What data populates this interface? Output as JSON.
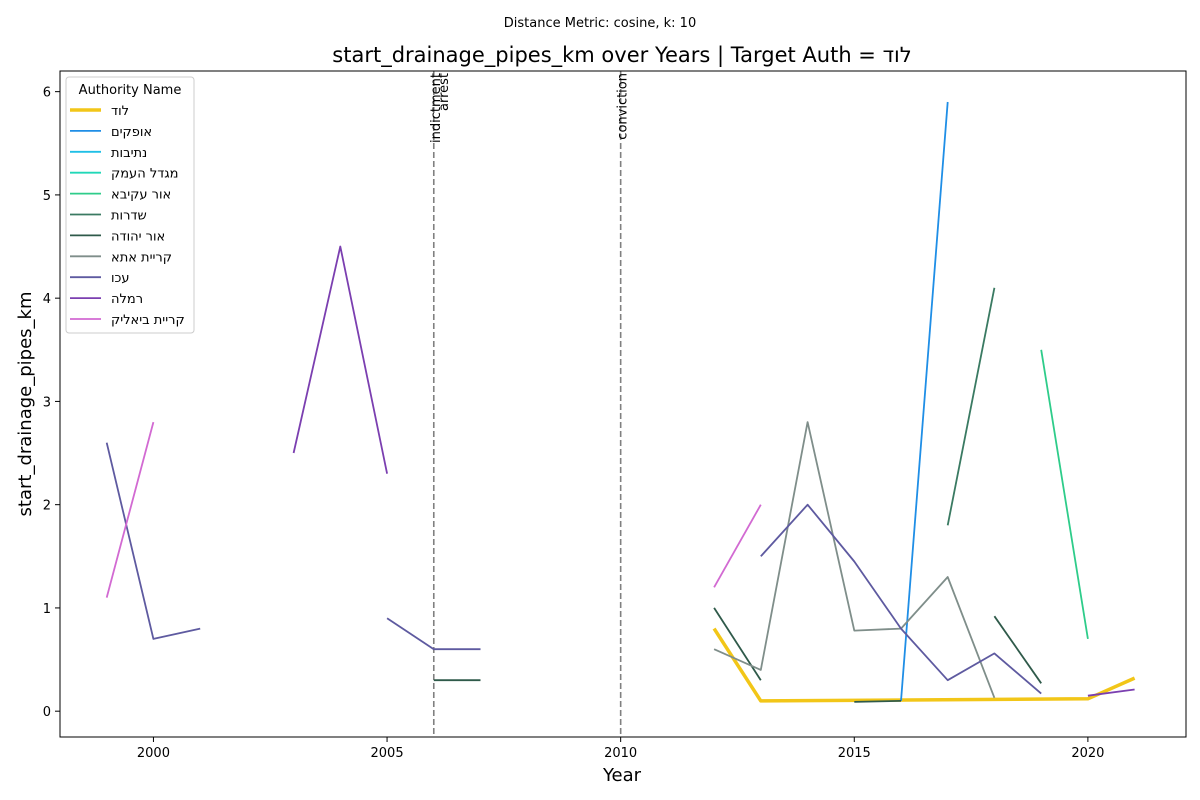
{
  "chart_data": {
    "type": "line",
    "suptitle": "Distance Metric: cosine, k: 10",
    "title": "start_drainage_pipes_km over Years | Target Auth = לוד",
    "xlabel": "Year",
    "ylabel": "start_drainage_pipes_km",
    "xlim": [
      1998.0,
      2022.1
    ],
    "ylim": [
      -0.25,
      6.2
    ],
    "xticks": [
      2000,
      2005,
      2010,
      2015,
      2020
    ],
    "yticks": [
      0,
      1,
      2,
      3,
      4,
      5,
      6
    ],
    "grid": false,
    "legend": {
      "title": "Authority Name",
      "placement": "top-left"
    },
    "events": [
      {
        "label": "indictment",
        "x": 2006
      },
      {
        "label": "arrest",
        "x": 2006
      },
      {
        "label": "conviction",
        "x": 2010
      }
    ],
    "series": [
      {
        "name": "לוד",
        "color": "#f2c618",
        "emphasis": true,
        "points": [
          [
            2012,
            0.8
          ],
          [
            2013,
            0.1
          ],
          [
            2020,
            0.12
          ],
          [
            2021,
            0.32
          ]
        ]
      },
      {
        "name": "אופקים",
        "color": "#1f8ee6",
        "points": [
          [
            2016,
            0.1
          ],
          [
            2017,
            5.9
          ]
        ]
      },
      {
        "name": "נתיבות",
        "color": "#1fbfe6",
        "points": []
      },
      {
        "name": "מגדל העמק",
        "color": "#20d8b8",
        "points": []
      },
      {
        "name": "אור עקיבא",
        "color": "#2ecc8a",
        "points": [
          [
            2019,
            3.5
          ],
          [
            2020,
            0.7
          ]
        ]
      },
      {
        "name": "שדרות",
        "color": "#3a7a62",
        "points": [
          [
            2017,
            1.8
          ],
          [
            2018,
            4.1
          ]
        ]
      },
      {
        "name": "אור יהודה",
        "color": "#2f5a4a",
        "points": [
          [
            2006,
            0.3
          ],
          [
            2007,
            0.3
          ],
          [
            null,
            null
          ],
          [
            2012,
            1.0
          ],
          [
            2013,
            0.3
          ],
          [
            null,
            null
          ],
          [
            2015,
            0.09
          ],
          [
            2016,
            0.1
          ],
          [
            null,
            null
          ],
          [
            2018,
            0.92
          ],
          [
            2019,
            0.27
          ]
        ]
      },
      {
        "name": "קריית אתא",
        "color": "#7f8e8a",
        "points": [
          [
            2012,
            0.6
          ],
          [
            2013,
            0.4
          ],
          [
            2014,
            2.8
          ],
          [
            2015,
            0.78
          ],
          [
            2016,
            0.8
          ],
          [
            2017,
            1.3
          ],
          [
            2018,
            0.13
          ]
        ]
      },
      {
        "name": "עכו",
        "color": "#5e5aa0",
        "points": [
          [
            1999,
            2.6
          ],
          [
            2000,
            0.7
          ],
          [
            2001,
            0.8
          ],
          [
            null,
            null
          ],
          [
            2005,
            0.9
          ],
          [
            2006,
            0.6
          ],
          [
            2007,
            0.6
          ],
          [
            null,
            null
          ],
          [
            2013,
            1.5
          ],
          [
            2014,
            2.0
          ],
          [
            2015,
            1.45
          ],
          [
            2016,
            0.8
          ],
          [
            2017,
            0.3
          ],
          [
            2018,
            0.56
          ],
          [
            2019,
            0.17
          ]
        ]
      },
      {
        "name": "רמלה",
        "color": "#7b3fb0",
        "points": [
          [
            2003,
            2.5
          ],
          [
            2004,
            4.5
          ],
          [
            2005,
            2.3
          ],
          [
            null,
            null
          ],
          [
            2020,
            0.15
          ],
          [
            2021,
            0.21
          ]
        ]
      },
      {
        "name": "קריית ביאליק",
        "color": "#d26ad2",
        "points": [
          [
            1999,
            1.1
          ],
          [
            2000,
            2.8
          ],
          [
            null,
            null
          ],
          [
            2012,
            1.2
          ],
          [
            2013,
            2.0
          ]
        ]
      }
    ]
  }
}
